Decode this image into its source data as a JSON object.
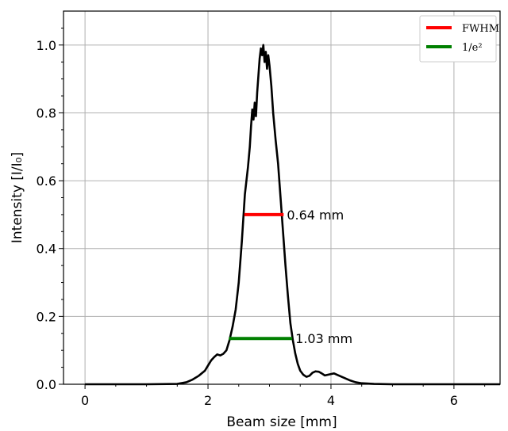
{
  "chart_data": {
    "type": "line",
    "xlabel": "Beam size [mm]",
    "ylabel": "Intensity [I/I₀]",
    "xlim": [
      -0.35,
      6.75
    ],
    "ylim": [
      0,
      1.1
    ],
    "xticks": [
      0,
      2,
      4,
      6
    ],
    "yticks": [
      0.0,
      0.2,
      0.4,
      0.6,
      0.8,
      1.0
    ],
    "grid": true,
    "legend_position": "top-right",
    "series": [
      {
        "type": "line",
        "color": "#000000",
        "points": [
          [
            0.0,
            0.0
          ],
          [
            1.0,
            0.0
          ],
          [
            1.5,
            0.001
          ],
          [
            1.65,
            0.006
          ],
          [
            1.75,
            0.014
          ],
          [
            1.85,
            0.025
          ],
          [
            1.95,
            0.04
          ],
          [
            2.0,
            0.055
          ],
          [
            2.05,
            0.07
          ],
          [
            2.1,
            0.08
          ],
          [
            2.15,
            0.088
          ],
          [
            2.2,
            0.085
          ],
          [
            2.25,
            0.09
          ],
          [
            2.3,
            0.1
          ],
          [
            2.35,
            0.13
          ],
          [
            2.4,
            0.17
          ],
          [
            2.45,
            0.22
          ],
          [
            2.5,
            0.3
          ],
          [
            2.55,
            0.42
          ],
          [
            2.6,
            0.56
          ],
          [
            2.65,
            0.64
          ],
          [
            2.68,
            0.7
          ],
          [
            2.7,
            0.76
          ],
          [
            2.72,
            0.81
          ],
          [
            2.74,
            0.78
          ],
          [
            2.76,
            0.83
          ],
          [
            2.78,
            0.79
          ],
          [
            2.8,
            0.86
          ],
          [
            2.82,
            0.91
          ],
          [
            2.84,
            0.96
          ],
          [
            2.86,
            0.99
          ],
          [
            2.88,
            0.97
          ],
          [
            2.9,
            1.0
          ],
          [
            2.92,
            0.95
          ],
          [
            2.94,
            0.98
          ],
          [
            2.96,
            0.93
          ],
          [
            2.98,
            0.97
          ],
          [
            3.0,
            0.94
          ],
          [
            3.03,
            0.88
          ],
          [
            3.06,
            0.8
          ],
          [
            3.1,
            0.72
          ],
          [
            3.14,
            0.65
          ],
          [
            3.18,
            0.55
          ],
          [
            3.22,
            0.45
          ],
          [
            3.26,
            0.35
          ],
          [
            3.3,
            0.26
          ],
          [
            3.34,
            0.18
          ],
          [
            3.38,
            0.13
          ],
          [
            3.42,
            0.09
          ],
          [
            3.46,
            0.06
          ],
          [
            3.5,
            0.04
          ],
          [
            3.55,
            0.028
          ],
          [
            3.6,
            0.022
          ],
          [
            3.65,
            0.025
          ],
          [
            3.7,
            0.034
          ],
          [
            3.75,
            0.038
          ],
          [
            3.8,
            0.037
          ],
          [
            3.85,
            0.032
          ],
          [
            3.9,
            0.026
          ],
          [
            3.95,
            0.028
          ],
          [
            4.0,
            0.03
          ],
          [
            4.05,
            0.032
          ],
          [
            4.1,
            0.028
          ],
          [
            4.2,
            0.02
          ],
          [
            4.3,
            0.012
          ],
          [
            4.4,
            0.006
          ],
          [
            4.5,
            0.003
          ],
          [
            4.7,
            0.001
          ],
          [
            5.0,
            0.0
          ],
          [
            6.75,
            0.0
          ]
        ]
      },
      {
        "name": "FWHM",
        "type": "hline",
        "color": "#ff0000",
        "x": [
          2.59,
          3.23
        ],
        "y": 0.5,
        "annotation": "0.64 mm"
      },
      {
        "name": "1/e²",
        "type": "hline",
        "color": "#008000",
        "x": [
          2.34,
          3.37
        ],
        "y": 0.135,
        "annotation": "1.03 mm"
      }
    ]
  }
}
